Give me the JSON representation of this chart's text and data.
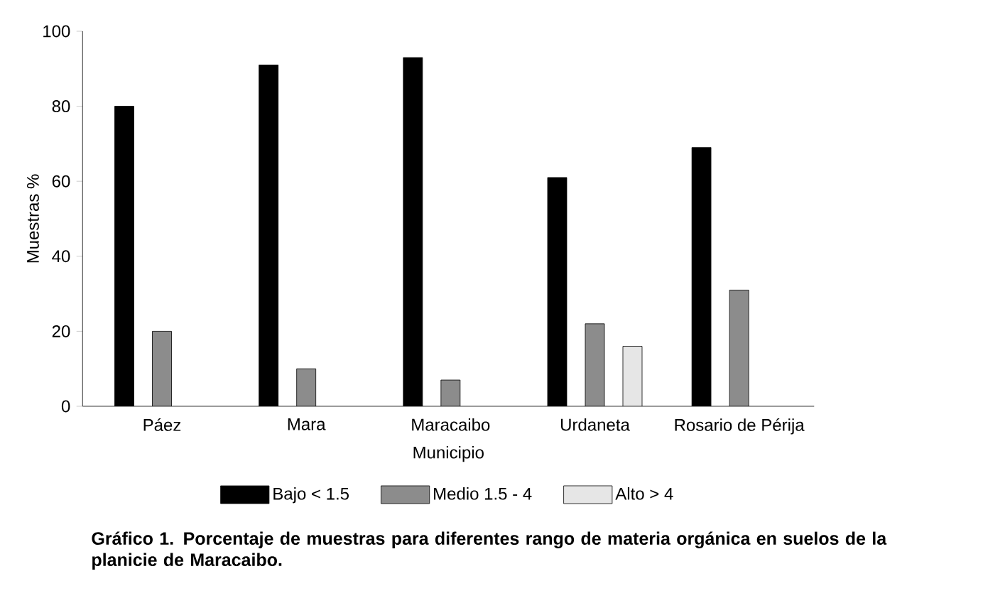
{
  "chart_data": {
    "type": "bar",
    "title": "Gráfico 1.   Porcentaje de muestras para diferentes rango de materia orgánica en suelos de la planicie de Maracaibo.",
    "xlabel": "Municipio",
    "ylabel": "Muestras %",
    "categories": [
      "Páez",
      "Mara",
      "Maracaibo",
      "Urdaneta",
      "Rosario de Périja"
    ],
    "series": [
      {
        "name": "Bajo < 1.5",
        "color": "#000000",
        "values": [
          80,
          91,
          93,
          61,
          69
        ]
      },
      {
        "name": "Medio 1.5 - 4",
        "color": "#8c8c8c",
        "values": [
          20,
          10,
          7,
          22,
          31
        ]
      },
      {
        "name": "Alto > 4",
        "color": "#e6e6e6",
        "values": [
          null,
          null,
          null,
          16,
          null
        ]
      }
    ],
    "ylim": [
      0,
      100
    ],
    "yticks": [
      0,
      20,
      40,
      60,
      80,
      100
    ],
    "legend": "bottom"
  }
}
